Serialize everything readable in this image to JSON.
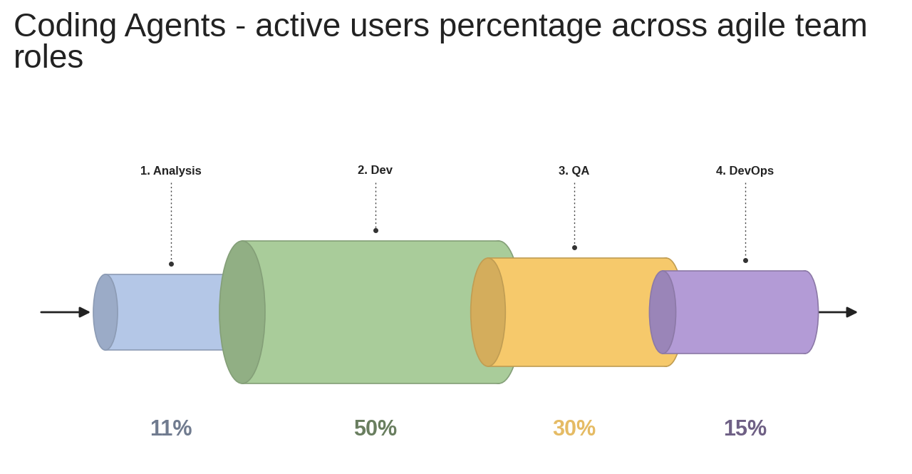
{
  "chart_data": {
    "type": "pipeline",
    "title": "Coding Agents - active users percentage across agile team roles",
    "categories": [
      "1. Analysis",
      "2. Dev",
      "3. QA",
      "4. DevOps"
    ],
    "values": [
      11,
      50,
      30,
      15
    ],
    "value_labels": [
      "11%",
      "50%",
      "30%",
      "15%"
    ],
    "colors": [
      "#b4c7e7",
      "#a9cc9a",
      "#f6c96b",
      "#b39bd6"
    ],
    "data_labels": true
  }
}
